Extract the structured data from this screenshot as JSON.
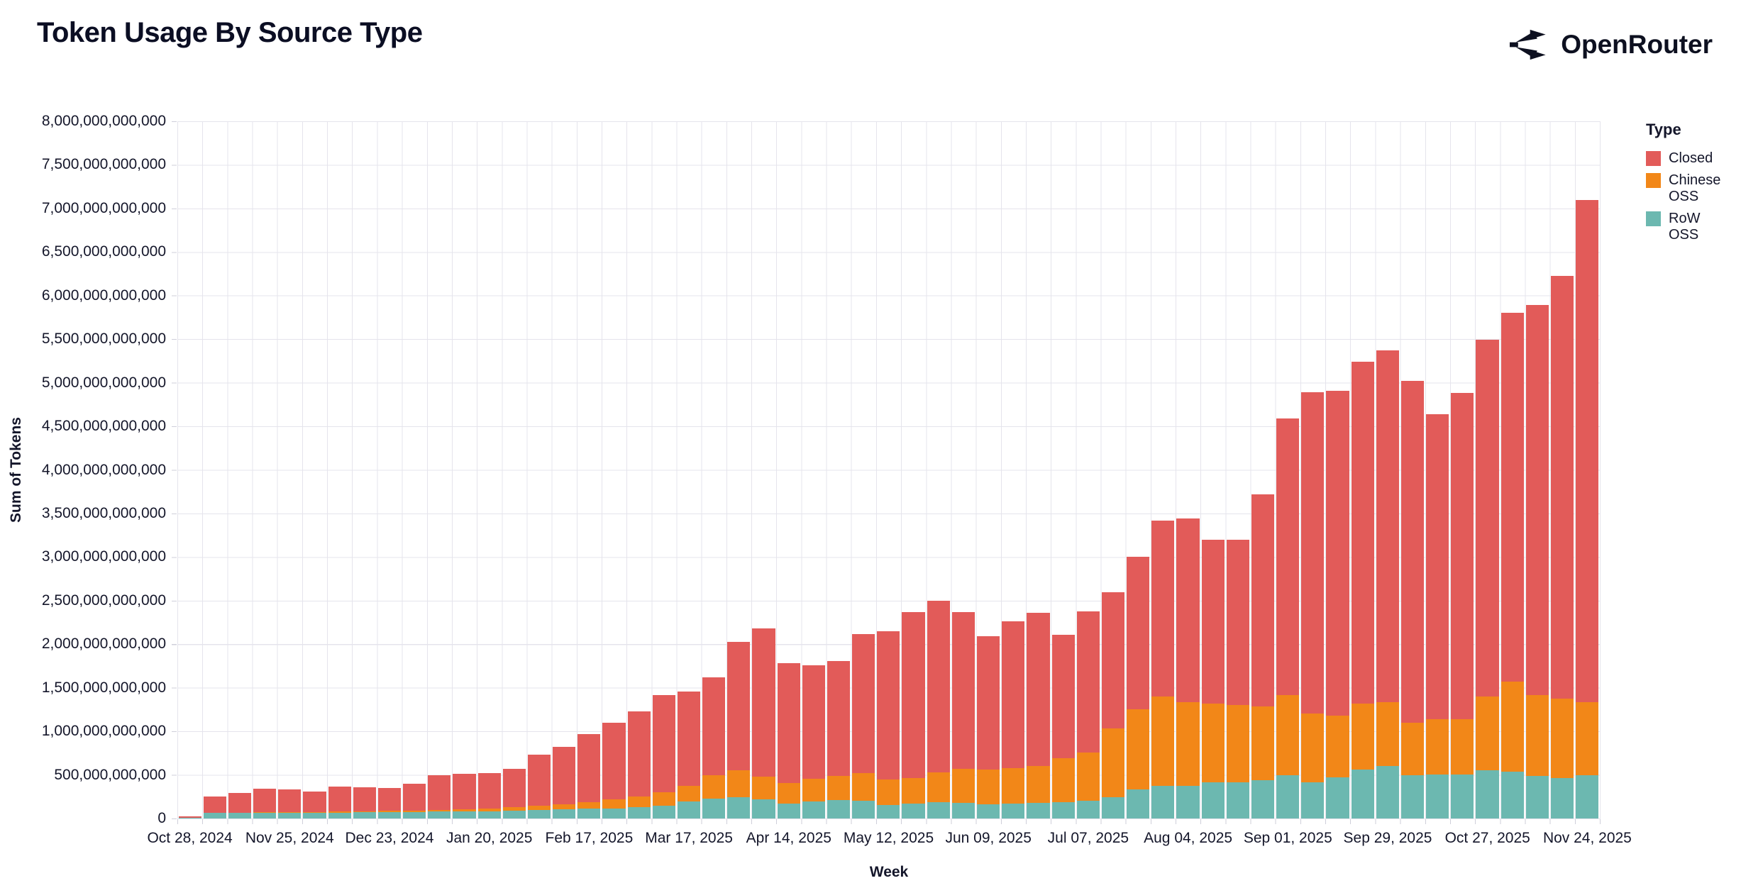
{
  "header": {
    "title": "Token Usage By Source Type",
    "brand": "OpenRouter"
  },
  "chart_data": {
    "type": "bar",
    "stacked": true,
    "title": "Token Usage By Source Type",
    "xlabel": "Week",
    "ylabel": "Sum of Tokens",
    "values_unit": "billions of tokens (multiply by 1e9)",
    "ylim": [
      0,
      8000
    ],
    "grid": true,
    "y_ticks": [
      "0",
      "500,000,000,000",
      "1,000,000,000,000",
      "1,500,000,000,000",
      "2,000,000,000,000",
      "2,500,000,000,000",
      "3,000,000,000,000",
      "3,500,000,000,000",
      "4,000,000,000,000",
      "4,500,000,000,000",
      "5,000,000,000,000",
      "5,500,000,000,000",
      "6,000,000,000,000",
      "6,500,000,000,000",
      "7,000,000,000,000",
      "7,500,000,000,000",
      "8,000,000,000,000"
    ],
    "x_tick_labels": [
      "Oct 28, 2024",
      "Nov 25, 2024",
      "Dec 23, 2024",
      "Jan 20, 2025",
      "Feb 17, 2025",
      "Mar 17, 2025",
      "Apr 14, 2025",
      "May 12, 2025",
      "Jun 09, 2025",
      "Jul 07, 2025",
      "Aug 04, 2025",
      "Sep 01, 2025",
      "Sep 29, 2025",
      "Oct 27, 2025",
      "Nov 24, 2025"
    ],
    "x_tick_every": 4,
    "categories": [
      "Oct 28, 2024",
      "Nov 04, 2024",
      "Nov 11, 2024",
      "Nov 18, 2024",
      "Nov 25, 2024",
      "Dec 02, 2024",
      "Dec 09, 2024",
      "Dec 16, 2024",
      "Dec 23, 2024",
      "Dec 30, 2024",
      "Jan 06, 2025",
      "Jan 13, 2025",
      "Jan 20, 2025",
      "Jan 27, 2025",
      "Feb 03, 2025",
      "Feb 10, 2025",
      "Feb 17, 2025",
      "Feb 24, 2025",
      "Mar 03, 2025",
      "Mar 10, 2025",
      "Mar 17, 2025",
      "Mar 24, 2025",
      "Mar 31, 2025",
      "Apr 07, 2025",
      "Apr 14, 2025",
      "Apr 21, 2025",
      "Apr 28, 2025",
      "May 05, 2025",
      "May 12, 2025",
      "May 19, 2025",
      "May 26, 2025",
      "Jun 02, 2025",
      "Jun 09, 2025",
      "Jun 16, 2025",
      "Jun 23, 2025",
      "Jun 30, 2025",
      "Jul 07, 2025",
      "Jul 14, 2025",
      "Jul 21, 2025",
      "Jul 28, 2025",
      "Aug 04, 2025",
      "Aug 11, 2025",
      "Aug 18, 2025",
      "Aug 25, 2025",
      "Sep 01, 2025",
      "Sep 08, 2025",
      "Sep 15, 2025",
      "Sep 22, 2025",
      "Sep 29, 2025",
      "Oct 06, 2025",
      "Oct 13, 2025",
      "Oct 20, 2025",
      "Oct 27, 2025",
      "Nov 03, 2025",
      "Nov 10, 2025",
      "Nov 17, 2025",
      "Nov 24, 2025"
    ],
    "legend": {
      "title": "Type",
      "position": "right",
      "entries": [
        {
          "label": "Closed",
          "color": "#E25B59"
        },
        {
          "label": "Chinese OSS",
          "color": "#F28718"
        },
        {
          "label": "RoW OSS",
          "color": "#6CB8B0"
        }
      ]
    },
    "series": [
      {
        "name": "Closed",
        "color": "#E25B59",
        "stack_order": 3,
        "values": [
          18,
          184,
          221,
          267,
          258,
          236,
          287,
          279,
          264,
          307,
          394,
          406,
          409,
          443,
          582,
          656,
          779,
          878,
          976,
          1117,
          1089,
          1121,
          1477,
          1700,
          1369,
          1308,
          1317,
          1600,
          1706,
          1899,
          1969,
          1795,
          1529,
          1685,
          1758,
          1422,
          1620,
          1565,
          1743,
          2019,
          2107,
          1880,
          1899,
          2436,
          3170,
          3687,
          3721,
          3920,
          4037,
          3925,
          3502,
          3742,
          4089,
          4228,
          4470,
          4856,
          5767
        ]
      },
      {
        "name": "Chinese OSS",
        "color": "#F28718",
        "stack_order": 2,
        "values": [
          2,
          4,
          5,
          6,
          7,
          8,
          9,
          11,
          13,
          17,
          22,
          27,
          31,
          37,
          49,
          60,
          76,
          108,
          127,
          157,
          176,
          271,
          309,
          263,
          238,
          257,
          279,
          320,
          290,
          298,
          336,
          388,
          398,
          400,
          420,
          498,
          560,
          794,
          926,
          1024,
          956,
          908,
          884,
          845,
          921,
          791,
          712,
          759,
          731,
          596,
          631,
          631,
          845,
          1038,
          935,
          908,
          834
        ]
      },
      {
        "name": "RoW OSS",
        "color": "#6CB8B0",
        "stack_order": 1,
        "values": [
          5,
          62,
          64,
          67,
          65,
          66,
          69,
          70,
          73,
          76,
          79,
          82,
          85,
          90,
          99,
          104,
          110,
          114,
          127,
          146,
          195,
          228,
          244,
          217,
          173,
          195,
          209,
          200,
          154,
          168,
          190,
          182,
          163,
          175,
          182,
          190,
          200,
          241,
          331,
          377,
          377,
          412,
          417,
          439,
          499,
          412,
          472,
          561,
          602,
          499,
          507,
          507,
          556,
          534,
          485,
          466,
          499
        ]
      }
    ]
  }
}
